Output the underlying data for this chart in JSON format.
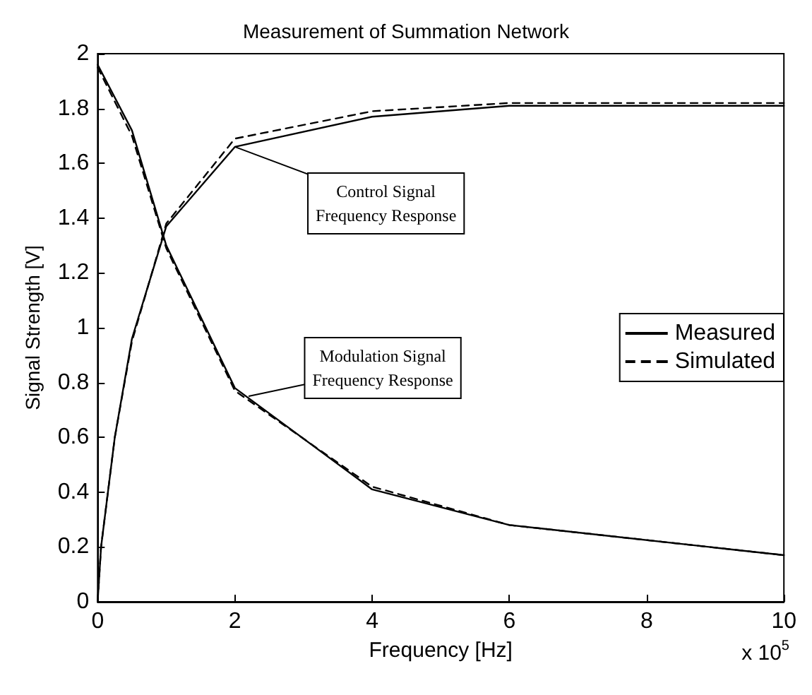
{
  "chart_data": {
    "type": "line",
    "title": "Measurement of Summation Network",
    "xlabel": "Frequency [Hz]",
    "ylabel": "Signal Strength [V]",
    "xlim": [
      0,
      10
    ],
    "xticks": [
      0,
      2,
      4,
      6,
      8,
      10
    ],
    "ylim": [
      0,
      2
    ],
    "yticks": [
      0,
      0.2,
      0.4,
      0.6,
      0.8,
      1,
      1.2,
      1.4,
      1.6,
      1.8,
      2
    ],
    "grid": false,
    "legend": "right",
    "marker": "none",
    "series": [
      {
        "name": "Measured",
        "color": "#000000",
        "line_style": "solid",
        "x": [
          0,
          0.05,
          0.25,
          0.5,
          1,
          2,
          4,
          6,
          10
        ],
        "values": [
          0,
          0.2,
          0.6,
          0.96,
          1.37,
          1.66,
          1.77,
          1.81,
          1.81
        ]
      },
      {
        "name": "Simulated",
        "color": "#000000",
        "line_style": "dashed",
        "x": [
          0,
          0.05,
          0.25,
          0.5,
          1,
          2,
          4,
          6,
          10
        ],
        "values": [
          0,
          0.2,
          0.6,
          0.95,
          1.38,
          1.69,
          1.79,
          1.82,
          1.82
        ]
      },
      {
        "color": "#000000",
        "line_style": "solid",
        "x": [
          0,
          0.5,
          1,
          2,
          4,
          6,
          10
        ],
        "values": [
          1.96,
          1.72,
          1.3,
          0.78,
          0.41,
          0.28,
          0.17
        ]
      },
      {
        "color": "#000000",
        "line_style": "dashed",
        "x": [
          0,
          0.5,
          1,
          2,
          4,
          6,
          10
        ],
        "values": [
          1.95,
          1.7,
          1.29,
          0.77,
          0.42,
          0.28,
          0.17
        ]
      }
    ],
    "annotations": [
      "x 10$^{5}$",
      {
        "text": "Control Signal\nFrequency Response",
        "x": 2,
        "y": 1.66
      },
      {
        "text": "Modulation Signal\nFrequency Response",
        "x": 2.2,
        "y": 0.75
      }
    ]
  }
}
